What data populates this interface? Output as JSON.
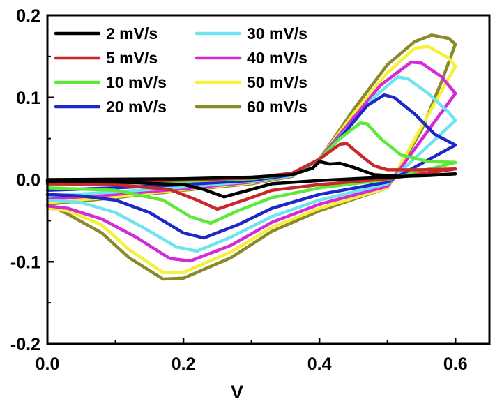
{
  "chart_data": {
    "type": "line",
    "title": "",
    "xlabel": "V",
    "ylabel": "",
    "xlim": [
      0.0,
      0.65
    ],
    "ylim": [
      -0.2,
      0.2
    ],
    "x_ticks": [
      "0.0",
      "0.2",
      "0.4",
      "0.6"
    ],
    "y_ticks": [
      "0.2",
      "0.1",
      "0.0",
      "-0.1",
      "-0.2"
    ],
    "legend_position": "top-left",
    "grid": false,
    "series": [
      {
        "name": "2 mV/s",
        "color": "#000000",
        "anodic": [
          [
            0.0,
            0.0
          ],
          [
            0.1,
            0.0005
          ],
          [
            0.2,
            0.001
          ],
          [
            0.3,
            0.003
          ],
          [
            0.36,
            0.006
          ],
          [
            0.39,
            0.014
          ],
          [
            0.4,
            0.022
          ],
          [
            0.415,
            0.019
          ],
          [
            0.43,
            0.02
          ],
          [
            0.45,
            0.015
          ],
          [
            0.48,
            0.006
          ],
          [
            0.52,
            0.004
          ],
          [
            0.56,
            0.005
          ],
          [
            0.6,
            0.007
          ]
        ],
        "cathodic": [
          [
            0.6,
            0.006
          ],
          [
            0.5,
            0.003
          ],
          [
            0.4,
            -0.001
          ],
          [
            0.33,
            -0.005
          ],
          [
            0.3,
            -0.012
          ],
          [
            0.26,
            -0.021
          ],
          [
            0.23,
            -0.012
          ],
          [
            0.2,
            -0.006
          ],
          [
            0.1,
            -0.003
          ],
          [
            0.0,
            -0.002
          ]
        ]
      },
      {
        "name": "5 mV/s",
        "color": "#c8282a",
        "anodic": [
          [
            0.0,
            -0.003
          ],
          [
            0.1,
            -0.002
          ],
          [
            0.2,
            -0.0005
          ],
          [
            0.3,
            0.002
          ],
          [
            0.36,
            0.008
          ],
          [
            0.4,
            0.025
          ],
          [
            0.43,
            0.043
          ],
          [
            0.44,
            0.044
          ],
          [
            0.46,
            0.03
          ],
          [
            0.48,
            0.017
          ],
          [
            0.5,
            0.012
          ],
          [
            0.55,
            0.012
          ],
          [
            0.6,
            0.013
          ]
        ],
        "cathodic": [
          [
            0.6,
            0.01
          ],
          [
            0.5,
            0.001
          ],
          [
            0.4,
            -0.006
          ],
          [
            0.33,
            -0.013
          ],
          [
            0.3,
            -0.022
          ],
          [
            0.25,
            -0.036
          ],
          [
            0.22,
            -0.025
          ],
          [
            0.18,
            -0.012
          ],
          [
            0.1,
            -0.006
          ],
          [
            0.0,
            -0.005
          ]
        ]
      },
      {
        "name": "10 mV/s",
        "color": "#5de83a",
        "anodic": [
          [
            0.0,
            -0.006
          ],
          [
            0.1,
            -0.004
          ],
          [
            0.2,
            -0.002
          ],
          [
            0.3,
            0.001
          ],
          [
            0.36,
            0.007
          ],
          [
            0.4,
            0.025
          ],
          [
            0.43,
            0.05
          ],
          [
            0.46,
            0.069
          ],
          [
            0.47,
            0.068
          ],
          [
            0.49,
            0.05
          ],
          [
            0.52,
            0.03
          ],
          [
            0.56,
            0.022
          ],
          [
            0.6,
            0.021
          ]
        ],
        "cathodic": [
          [
            0.6,
            0.016
          ],
          [
            0.5,
            0.0
          ],
          [
            0.4,
            -0.01
          ],
          [
            0.33,
            -0.022
          ],
          [
            0.28,
            -0.038
          ],
          [
            0.24,
            -0.053
          ],
          [
            0.21,
            -0.045
          ],
          [
            0.17,
            -0.025
          ],
          [
            0.1,
            -0.013
          ],
          [
            0.0,
            -0.01
          ]
        ]
      },
      {
        "name": "20 mV/s",
        "color": "#1e28c8",
        "anodic": [
          [
            0.0,
            -0.013
          ],
          [
            0.1,
            -0.01
          ],
          [
            0.2,
            -0.006
          ],
          [
            0.3,
            -0.001
          ],
          [
            0.36,
            0.006
          ],
          [
            0.4,
            0.025
          ],
          [
            0.44,
            0.06
          ],
          [
            0.47,
            0.09
          ],
          [
            0.495,
            0.103
          ],
          [
            0.51,
            0.1
          ],
          [
            0.54,
            0.08
          ],
          [
            0.57,
            0.055
          ],
          [
            0.6,
            0.042
          ]
        ],
        "cathodic": [
          [
            0.6,
            0.022
          ],
          [
            0.5,
            -0.003
          ],
          [
            0.4,
            -0.018
          ],
          [
            0.33,
            -0.035
          ],
          [
            0.28,
            -0.055
          ],
          [
            0.23,
            -0.071
          ],
          [
            0.2,
            -0.065
          ],
          [
            0.15,
            -0.04
          ],
          [
            0.1,
            -0.025
          ],
          [
            0.05,
            -0.02
          ],
          [
            0.0,
            -0.018
          ]
        ]
      },
      {
        "name": "30 mV/s",
        "color": "#6fe3f0",
        "anodic": [
          [
            0.0,
            -0.02
          ],
          [
            0.1,
            -0.015
          ],
          [
            0.2,
            -0.009
          ],
          [
            0.3,
            -0.002
          ],
          [
            0.36,
            0.005
          ],
          [
            0.4,
            0.025
          ],
          [
            0.45,
            0.07
          ],
          [
            0.48,
            0.1
          ],
          [
            0.515,
            0.125
          ],
          [
            0.53,
            0.123
          ],
          [
            0.56,
            0.105
          ],
          [
            0.59,
            0.082
          ],
          [
            0.6,
            0.072
          ]
        ],
        "cathodic": [
          [
            0.6,
            0.028
          ],
          [
            0.5,
            -0.005
          ],
          [
            0.4,
            -0.025
          ],
          [
            0.33,
            -0.045
          ],
          [
            0.27,
            -0.07
          ],
          [
            0.22,
            -0.087
          ],
          [
            0.19,
            -0.082
          ],
          [
            0.14,
            -0.058
          ],
          [
            0.1,
            -0.04
          ],
          [
            0.05,
            -0.028
          ],
          [
            0.0,
            -0.025
          ]
        ]
      },
      {
        "name": "40 mV/s",
        "color": "#d42ad8",
        "anodic": [
          [
            0.0,
            -0.024
          ],
          [
            0.1,
            -0.018
          ],
          [
            0.2,
            -0.011
          ],
          [
            0.3,
            -0.003
          ],
          [
            0.36,
            0.005
          ],
          [
            0.4,
            0.025
          ],
          [
            0.45,
            0.075
          ],
          [
            0.49,
            0.115
          ],
          [
            0.535,
            0.143
          ],
          [
            0.55,
            0.142
          ],
          [
            0.58,
            0.125
          ],
          [
            0.6,
            0.105
          ]
        ],
        "cathodic": [
          [
            0.6,
            0.032
          ],
          [
            0.5,
            -0.008
          ],
          [
            0.4,
            -0.03
          ],
          [
            0.33,
            -0.052
          ],
          [
            0.27,
            -0.08
          ],
          [
            0.21,
            -0.099
          ],
          [
            0.18,
            -0.096
          ],
          [
            0.13,
            -0.07
          ],
          [
            0.08,
            -0.048
          ],
          [
            0.03,
            -0.035
          ],
          [
            0.0,
            -0.032
          ]
        ]
      },
      {
        "name": "50 mV/s",
        "color": "#f5f03a",
        "anodic": [
          [
            0.0,
            -0.028
          ],
          [
            0.1,
            -0.021
          ],
          [
            0.2,
            -0.012
          ],
          [
            0.3,
            -0.004
          ],
          [
            0.36,
            0.005
          ],
          [
            0.4,
            0.025
          ],
          [
            0.45,
            0.08
          ],
          [
            0.5,
            0.13
          ],
          [
            0.54,
            0.16
          ],
          [
            0.56,
            0.162
          ],
          [
            0.59,
            0.148
          ],
          [
            0.6,
            0.138
          ]
        ],
        "cathodic": [
          [
            0.6,
            0.035
          ],
          [
            0.5,
            -0.01
          ],
          [
            0.4,
            -0.035
          ],
          [
            0.33,
            -0.058
          ],
          [
            0.27,
            -0.088
          ],
          [
            0.2,
            -0.113
          ],
          [
            0.17,
            -0.113
          ],
          [
            0.12,
            -0.085
          ],
          [
            0.08,
            -0.055
          ],
          [
            0.03,
            -0.038
          ],
          [
            0.0,
            -0.035
          ]
        ]
      },
      {
        "name": "60 mV/s",
        "color": "#8a8a2a",
        "anodic": [
          [
            0.0,
            -0.03
          ],
          [
            0.1,
            -0.022
          ],
          [
            0.2,
            -0.013
          ],
          [
            0.3,
            -0.005
          ],
          [
            0.36,
            0.004
          ],
          [
            0.4,
            0.025
          ],
          [
            0.45,
            0.085
          ],
          [
            0.5,
            0.14
          ],
          [
            0.54,
            0.168
          ],
          [
            0.565,
            0.176
          ],
          [
            0.59,
            0.172
          ],
          [
            0.6,
            0.165
          ]
        ],
        "cathodic": [
          [
            0.6,
            0.165
          ],
          [
            0.58,
            0.12
          ],
          [
            0.55,
            0.06
          ],
          [
            0.5,
            -0.01
          ],
          [
            0.4,
            -0.038
          ],
          [
            0.33,
            -0.063
          ],
          [
            0.27,
            -0.095
          ],
          [
            0.2,
            -0.12
          ],
          [
            0.17,
            -0.121
          ],
          [
            0.12,
            -0.095
          ],
          [
            0.08,
            -0.065
          ],
          [
            0.03,
            -0.042
          ],
          [
            0.0,
            -0.03
          ]
        ]
      }
    ]
  }
}
